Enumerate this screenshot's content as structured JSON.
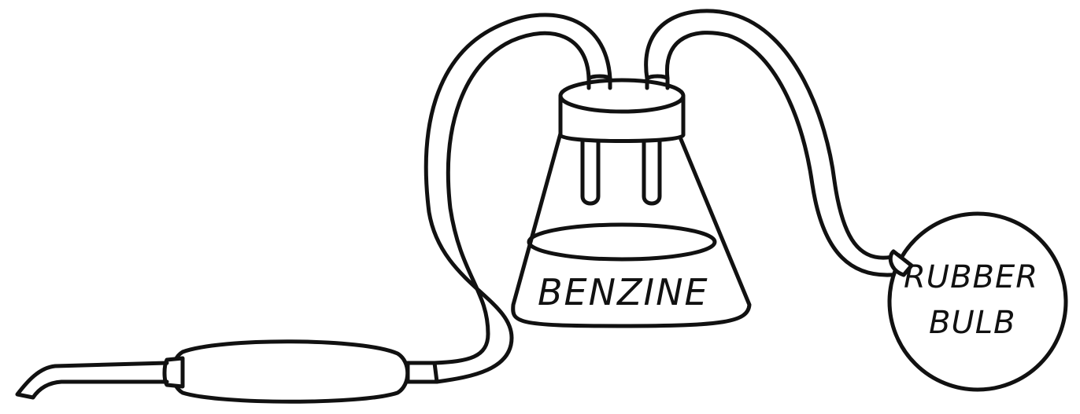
{
  "diagram": {
    "labels": {
      "flask": "BENZINE",
      "bulb_line1": "RUBBER",
      "bulb_line2": "BULB"
    },
    "colors": {
      "ink": "#111111",
      "background": "#ffffff"
    }
  }
}
